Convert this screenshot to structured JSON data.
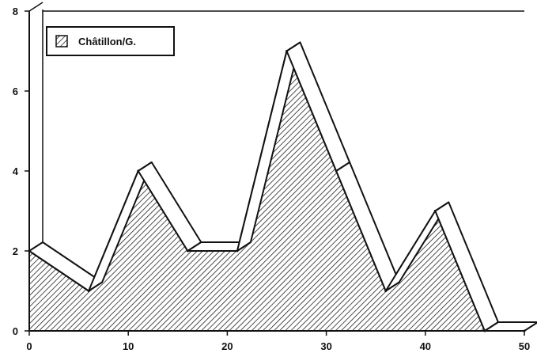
{
  "chart_data": {
    "type": "area",
    "title": "",
    "xlabel": "",
    "ylabel": "",
    "xlim": [
      0,
      50
    ],
    "ylim": [
      0,
      8
    ],
    "x_ticks": [
      0,
      10,
      20,
      30,
      40,
      50
    ],
    "y_ticks": [
      0,
      2,
      4,
      6,
      8
    ],
    "x_tick_labels": [
      "0",
      "10",
      "20",
      "30",
      "40",
      "50"
    ],
    "y_tick_labels": [
      "0",
      "2",
      "4",
      "6",
      "8"
    ],
    "grid": false,
    "legend_position": "top-left",
    "style": "3d-ribbon, diagonal hatch fill",
    "series": [
      {
        "name": "Châtillon/G.",
        "x": [
          0,
          6,
          11,
          16,
          21,
          26,
          31,
          36,
          41,
          46,
          50
        ],
        "y": [
          2,
          1,
          4,
          2,
          2,
          7,
          4,
          1,
          3,
          0,
          0
        ]
      }
    ]
  },
  "colors": {
    "line": "#111111",
    "hatch": "#222222",
    "fill_background": "#ffffff",
    "ribbon_face": "#ffffff"
  }
}
